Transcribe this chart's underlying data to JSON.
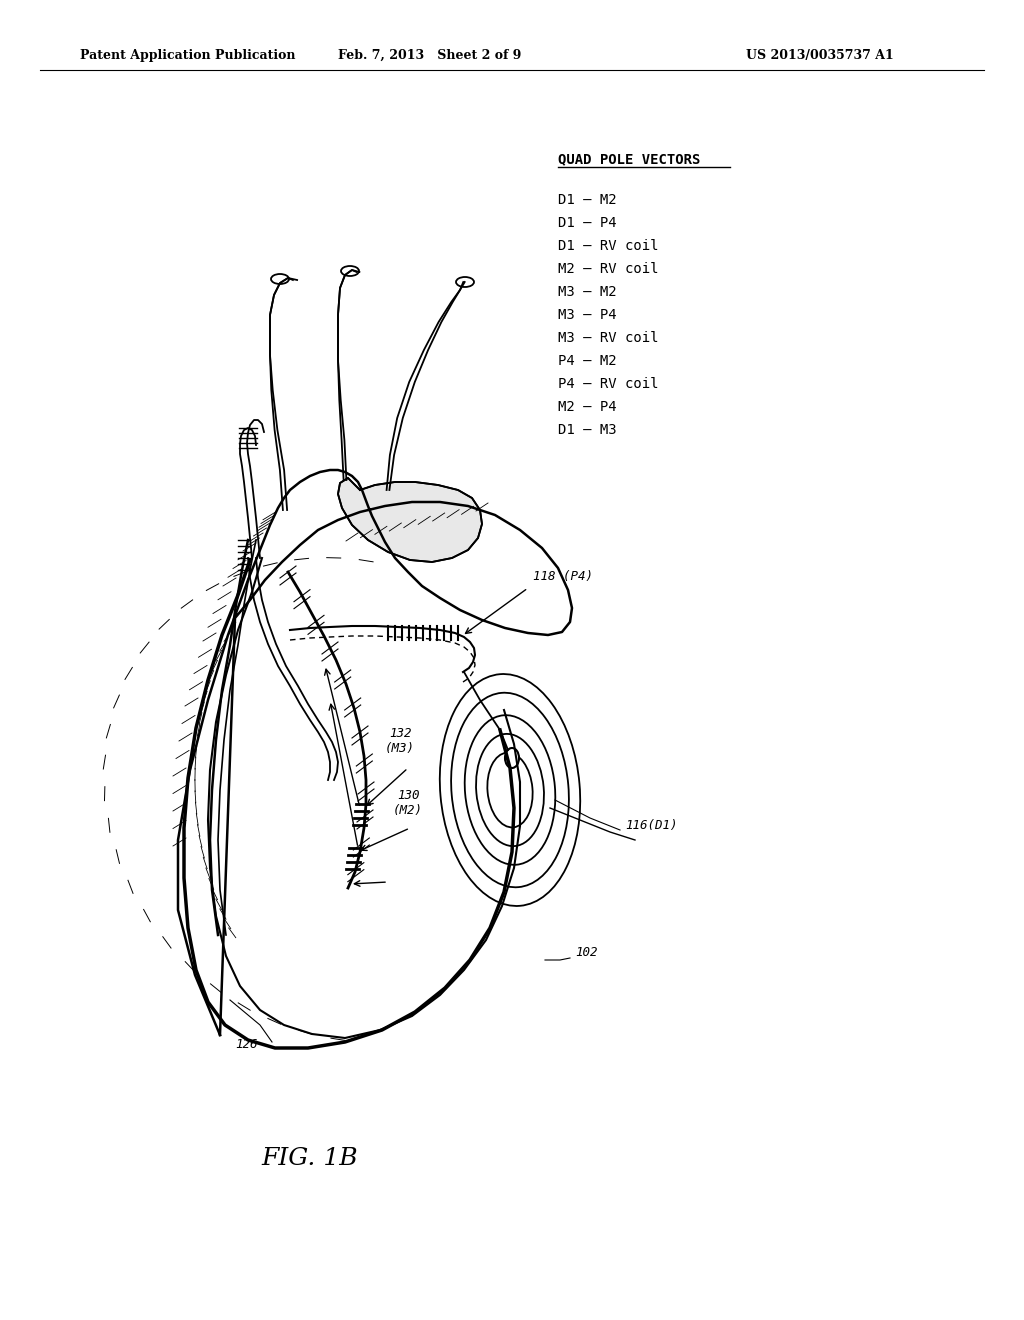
{
  "bg_color": "#ffffff",
  "header_left": "Patent Application Publication",
  "header_center": "Feb. 7, 2013   Sheet 2 of 9",
  "header_right": "US 2013/0035737 A1",
  "quad_pole_title": "QUAD POLE VECTORS",
  "quad_pole_vectors": [
    "D1 – M2",
    "D1 – P4",
    "D1 – RV coil",
    "M2 – RV coil",
    "M3 – M2",
    "M3 – P4",
    "M3 – RV coil",
    "P4 – M2",
    "P4 – RV coil",
    "M2 – P4",
    "D1 – M3"
  ],
  "figure_label": "FIG. 1B",
  "labels": {
    "118_P4": "118 (P4)",
    "116_D1": "116(D1)",
    "132_M3": "132\n(M3)",
    "130_M2": "130\n(M2)",
    "102": "102",
    "126": "126"
  },
  "text_color": "#000000",
  "line_color": "#000000",
  "header_fontsize": 9,
  "body_fontsize": 10,
  "quad_title_fontsize": 10,
  "quad_item_fontsize": 10,
  "figure_label_fontsize": 18
}
